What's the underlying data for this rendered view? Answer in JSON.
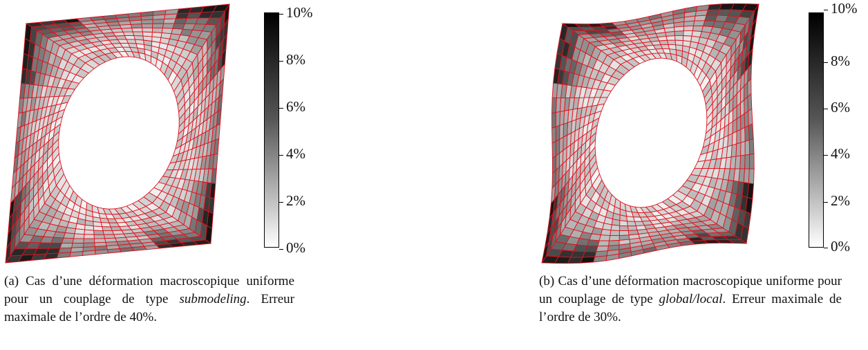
{
  "colorbar": {
    "ticks": [
      "10%",
      "8%",
      "6%",
      "4%",
      "2%",
      "0%"
    ],
    "colors": {
      "max": "#000000",
      "min": "#ffffff",
      "mesh": "#e0101c"
    }
  },
  "panel_a": {
    "caption": {
      "label": "(a)",
      "text_before": "Cas d’une déformation macroscopique uniforme pour un couplage de type ",
      "emphasis": "submodeling",
      "text_after": ". Erreur maximale de l’ordre de 40%."
    }
  },
  "panel_b": {
    "caption": {
      "label": "(b)",
      "text_before": "Cas d’une déformation macroscopique uniforme pour un couplage de type ",
      "emphasis": "global/local",
      "text_after": ". Erreur maximale de l’ordre de 30%."
    }
  }
}
